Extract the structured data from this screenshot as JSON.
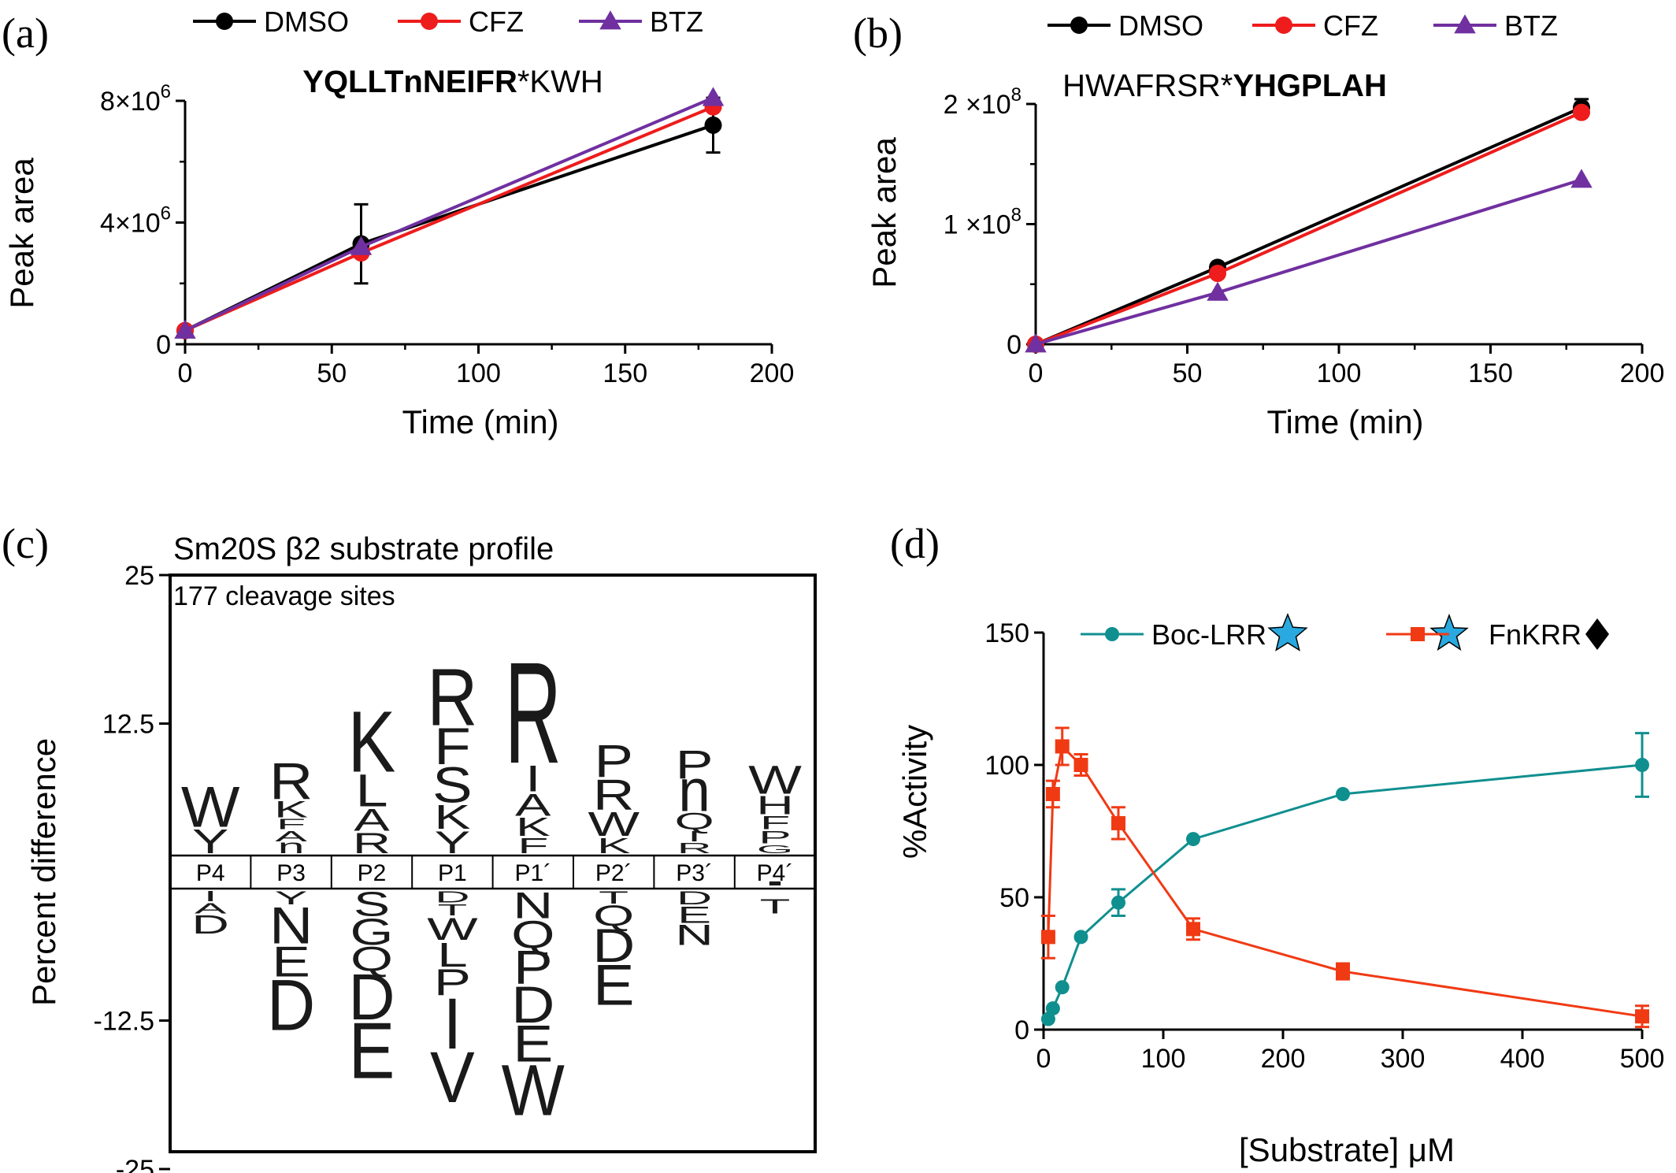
{
  "chart_data": [
    {
      "panel": "(a)",
      "type": "line",
      "title_bold": "YQLLTnNEIFR",
      "title_rest": "*KWH",
      "xlabel": "Time (min)",
      "ylabel": "Peak area",
      "xlim": [
        0,
        200
      ],
      "ylim": [
        0,
        8000000
      ],
      "xticks": [
        "0",
        "50",
        "100",
        "150",
        "200"
      ],
      "yticks": [
        {
          "value": 0,
          "base": "0",
          "exp": ""
        },
        {
          "value": 4000000,
          "base": "4×10",
          "exp": "6"
        },
        {
          "value": 8000000,
          "base": "8×10",
          "exp": "6"
        }
      ],
      "legend": "top",
      "series": [
        {
          "name": "DMSO",
          "color": "#000000",
          "marker": "circle",
          "x": [
            0,
            60,
            180
          ],
          "y": [
            450000,
            3300000,
            7200000
          ],
          "err": [
            0,
            1300000,
            900000
          ]
        },
        {
          "name": "CFZ",
          "color": "#ee1c1c",
          "marker": "circle",
          "x": [
            0,
            60,
            180
          ],
          "y": [
            450000,
            3000000,
            7800000
          ],
          "err": [
            0,
            0,
            0
          ]
        },
        {
          "name": "BTZ",
          "color": "#7030a0",
          "marker": "triangle",
          "x": [
            0,
            60,
            180
          ],
          "y": [
            450000,
            3200000,
            8100000
          ],
          "err": [
            0,
            0,
            0
          ]
        }
      ]
    },
    {
      "panel": "(b)",
      "type": "line",
      "title_bold": "YHGPLAH",
      "title_rest": "HWAFRSR*",
      "xlabel": "Time (min)",
      "ylabel": "Peak area",
      "xlim": [
        0,
        200
      ],
      "ylim": [
        0,
        200000000
      ],
      "xticks": [
        "0",
        "50",
        "100",
        "150",
        "200"
      ],
      "yticks": [
        {
          "value": 0,
          "base": "0",
          "exp": ""
        },
        {
          "value": 100000000,
          "base": "1 ×10",
          "exp": "8"
        },
        {
          "value": 200000000,
          "base": "2 ×10",
          "exp": "8"
        }
      ],
      "legend": "top",
      "series": [
        {
          "name": "DMSO",
          "color": "#000000",
          "marker": "circle",
          "x": [
            0,
            60,
            180
          ],
          "y": [
            0,
            64000000,
            197000000
          ],
          "err": [
            0,
            0,
            7000000
          ]
        },
        {
          "name": "CFZ",
          "color": "#ee1c1c",
          "marker": "circle",
          "x": [
            0,
            60,
            180
          ],
          "y": [
            0,
            59000000,
            193000000
          ],
          "err": [
            0,
            0,
            0
          ]
        },
        {
          "name": "BTZ",
          "color": "#7030a0",
          "marker": "triangle",
          "x": [
            0,
            60,
            180
          ],
          "y": [
            0,
            43000000,
            137000000
          ],
          "err": [
            0,
            0,
            0
          ]
        }
      ]
    },
    {
      "panel": "(c)",
      "type": "sequence-logo",
      "title": "Sm20S β2 substrate profile",
      "annotation": "177 cleavage sites",
      "ylabel": "Percent difference",
      "ylim": [
        -25,
        25
      ],
      "yticks": [
        "25",
        "12.5",
        "-12.5",
        "-25"
      ],
      "positions": [
        {
          "name": "P4",
          "up": [
            [
              "W",
              4.0
            ],
            [
              "Y",
              2.4
            ]
          ],
          "down": [
            [
              "I",
              1.0
            ],
            [
              "A",
              1.0
            ],
            [
              "D",
              1.8
            ]
          ]
        },
        {
          "name": "P3",
          "up": [
            [
              "R",
              3.6
            ],
            [
              "K",
              1.6
            ],
            [
              "F",
              1.0
            ],
            [
              "A",
              1.0
            ],
            [
              "n",
              1.0
            ]
          ],
          "down": [
            [
              "Y",
              1.3
            ],
            [
              "N",
              3.6
            ],
            [
              "E",
              3.0
            ],
            [
              "D",
              5.0
            ]
          ]
        },
        {
          "name": "P2",
          "up": [
            [
              "K",
              6.0
            ],
            [
              "L",
              3.2
            ],
            [
              "A",
              2.2
            ],
            [
              "R",
              2.0
            ]
          ],
          "down": [
            [
              "S",
              2.4
            ],
            [
              "G",
              2.6
            ],
            [
              "Q",
              2.4
            ],
            [
              "D",
              4.5
            ],
            [
              "E",
              5.5
            ]
          ]
        },
        {
          "name": "P1",
          "up": [
            [
              "R",
              5.6
            ],
            [
              "F",
              3.6
            ],
            [
              "S",
              3.5
            ],
            [
              "K",
              2.4
            ],
            [
              "Y",
              2.2
            ]
          ],
          "down": [
            [
              "D",
              1.1
            ],
            [
              "T",
              1.1
            ],
            [
              "W",
              2.2
            ],
            [
              "L",
              2.4
            ],
            [
              "P",
              2.6
            ],
            [
              "I",
              5.0
            ],
            [
              "V",
              5.0
            ]
          ]
        },
        {
          "name": "P1´",
          "up": [
            [
              "R",
              10.0
            ],
            [
              "I",
              2.6
            ],
            [
              "A",
              2.2
            ],
            [
              "K",
              1.8
            ],
            [
              "F",
              1.5
            ]
          ],
          "down": [
            [
              "N",
              2.6
            ],
            [
              "Q",
              2.7
            ],
            [
              "P",
              3.3
            ],
            [
              "D",
              3.6
            ],
            [
              "E",
              3.6
            ],
            [
              "W",
              5.0
            ]
          ]
        },
        {
          "name": "P2´",
          "up": [
            [
              "P",
              3.2
            ],
            [
              "R",
              3.0
            ],
            [
              "W",
              2.4
            ],
            [
              "K",
              1.5
            ]
          ],
          "down": [
            [
              "T",
              1.2
            ],
            [
              "Q",
              2.0
            ],
            [
              "D",
              3.3
            ],
            [
              "E",
              4.0
            ]
          ]
        },
        {
          "name": "P3´",
          "up": [
            [
              "P",
              2.8
            ],
            [
              "n",
              3.0
            ],
            [
              "Q",
              1.6
            ],
            [
              "I",
              1.0
            ],
            [
              "R",
              1.0
            ]
          ],
          "down": [
            [
              "D",
              1.3
            ],
            [
              "E",
              1.6
            ],
            [
              "N",
              2.0
            ]
          ]
        },
        {
          "name": "P4´",
          "up": [
            [
              "W",
              2.8
            ],
            [
              "H",
              1.8
            ],
            [
              "F",
              1.3
            ],
            [
              "P",
              1.2
            ],
            [
              "G",
              0.8
            ]
          ],
          "down": [
            [
              "-",
              0.6
            ],
            [
              "T",
              1.4
            ]
          ]
        }
      ]
    },
    {
      "panel": "(d)",
      "type": "line",
      "xlabel": "[Substrate] μM",
      "ylabel": "%Activity",
      "xlim": [
        0,
        500
      ],
      "ylim": [
        0,
        150
      ],
      "xticks": [
        "0",
        "100",
        "200",
        "300",
        "400",
        "500"
      ],
      "yticks": [
        "0",
        "50",
        "100",
        "150"
      ],
      "legend": "top",
      "series": [
        {
          "name": "Boc-LRR",
          "color": "#108f8f",
          "marker": "circle",
          "legend_suffix": "star",
          "x": [
            3.9,
            7.8,
            15.6,
            31.25,
            62.5,
            125,
            250,
            500
          ],
          "y": [
            4,
            8,
            16,
            35,
            48,
            72,
            89,
            100
          ],
          "err": [
            0,
            0,
            0,
            0,
            5,
            0,
            0,
            12
          ]
        },
        {
          "name": "FnKRR",
          "color": "#f03a14",
          "marker": "square",
          "legend_prefix": "star",
          "legend_suffix": "diamond",
          "x": [
            3.9,
            7.8,
            15.6,
            31.25,
            62.5,
            125,
            250,
            500
          ],
          "y": [
            35,
            89,
            107,
            100,
            78,
            38,
            22,
            5
          ],
          "err": [
            8,
            5,
            7,
            4,
            6,
            4,
            3,
            4
          ]
        }
      ]
    }
  ]
}
